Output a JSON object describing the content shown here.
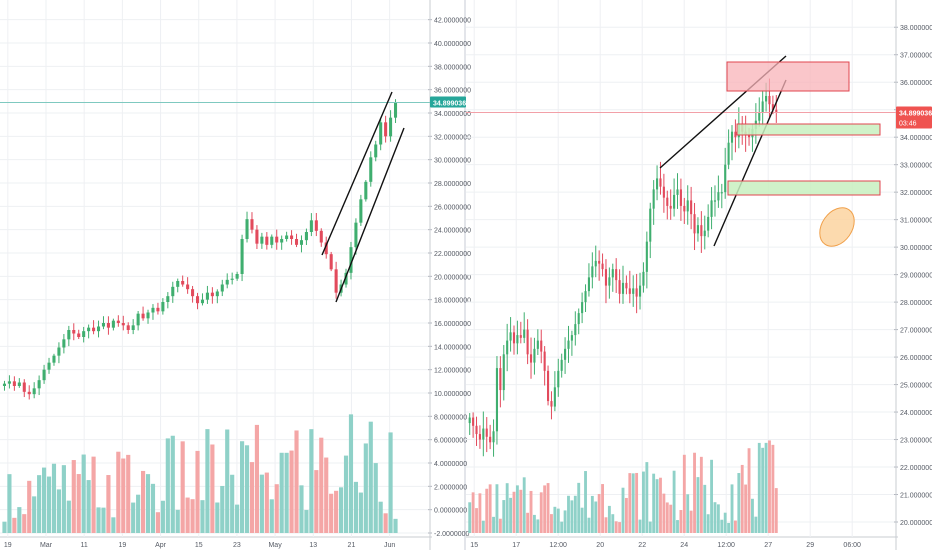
{
  "colors": {
    "up": "#26a69a",
    "down": "#ef5350",
    "up_candle": "#3fae6f",
    "down_candle": "#e24a5c",
    "vol_up": "#8fd1c8",
    "vol_down": "#f4a6a6",
    "grid": "#eef0f3",
    "axis_text": "#555a64",
    "price_line_left": "#7fc9c0",
    "price_line_right": "#f2a0a8",
    "price_badge": "#ef5350",
    "zone_red_fill": "#f8b3b8",
    "zone_red_stroke": "#e0454f",
    "zone_green_fill": "#c8f0c0",
    "zone_green_stroke": "#e0454f",
    "ellipse_fill": "#fcd4a0",
    "ellipse_stroke": "#f0a04a",
    "trendline": "#111111"
  },
  "chart_data": [
    {
      "type": "candlestick",
      "name": "daily",
      "x_ticks": [
        "19",
        "Mar",
        "11",
        "19",
        "Apr",
        "15",
        "23",
        "May",
        "13",
        "21",
        "Jun"
      ],
      "y_ticks": [
        "42.0000000",
        "40.0000000",
        "38.0000000",
        "36.0000000",
        "34.0000000",
        "32.0000000",
        "30.0000000",
        "28.0000000",
        "26.0000000",
        "24.0000000",
        "22.0000000",
        "20.0000000",
        "18.0000000",
        "16.0000000",
        "14.0000000",
        "12.0000000",
        "10.0000000",
        "8.0000000",
        "6.0000000",
        "4.0000000",
        "2.0000000",
        "0.0000000",
        "-2.0000000"
      ],
      "ylim": [
        -2,
        43
      ],
      "last_price": "34.8990366",
      "closes": [
        10.8,
        11.0,
        10.6,
        10.9,
        10.1,
        9.9,
        10.4,
        11.1,
        12.0,
        12.6,
        13.2,
        13.9,
        14.6,
        15.4,
        15.1,
        14.8,
        15.3,
        15.6,
        15.3,
        15.7,
        16.0,
        15.6,
        16.2,
        16.0,
        15.8,
        15.4,
        15.8,
        16.8,
        16.4,
        16.9,
        17.3,
        17.0,
        17.8,
        18.3,
        19.1,
        19.6,
        19.3,
        18.9,
        18.3,
        17.7,
        18.0,
        18.6,
        18.3,
        18.7,
        19.3,
        19.7,
        19.8,
        20.2,
        23.2,
        24.9,
        24.0,
        22.8,
        23.4,
        22.7,
        23.4,
        22.9,
        23.2,
        23.5,
        23.2,
        22.7,
        23.1,
        23.8,
        24.8,
        23.9,
        22.9,
        21.9,
        20.6,
        18.6,
        19.3,
        20.3,
        22.5,
        24.6,
        26.6,
        28.1,
        30.2,
        31.3,
        33.2,
        32.0,
        33.6,
        34.9
      ]
    },
    {
      "type": "candlestick",
      "name": "hourly",
      "x_ticks": [
        "15",
        "17",
        "12:00",
        "20",
        "22",
        "24",
        "12:00",
        "27",
        "29",
        "06:00"
      ],
      "y_ticks": [
        "38.0000000",
        "37.0000000",
        "36.0000000",
        "35.0000000",
        "34.0000000",
        "33.0000000",
        "32.0000000",
        "31.0000000",
        "30.0000000",
        "29.0000000",
        "28.0000000",
        "27.0000000",
        "26.0000000",
        "25.0000000",
        "24.0000000",
        "23.0000000",
        "22.0000000",
        "21.0000000",
        "20.0000000"
      ],
      "ylim": [
        19.6,
        38.7
      ],
      "last_price": "34.8990366",
      "countdown": "03:46",
      "closes": [
        23.8,
        23.5,
        23.2,
        23.0,
        23.4,
        23.1,
        22.9,
        23.3,
        25.6,
        24.8,
        26.1,
        26.6,
        26.9,
        26.5,
        26.8,
        26.7,
        27.0,
        26.1,
        25.8,
        26.3,
        26.6,
        26.2,
        25.5,
        24.4,
        24.2,
        24.9,
        25.5,
        25.9,
        26.3,
        26.6,
        26.8,
        27.2,
        27.6,
        28.0,
        28.4,
        28.9,
        29.3,
        29.5,
        29.4,
        29.2,
        28.6,
        28.9,
        29.2,
        28.8,
        28.3,
        28.7,
        28.5,
        28.3,
        28.5,
        28.2,
        28.6,
        29.1,
        30.2,
        31.4,
        32.1,
        32.5,
        32.2,
        31.8,
        31.5,
        31.4,
        31.9,
        32.1,
        31.5,
        31.3,
        31.7,
        31.2,
        30.5,
        30.8,
        30.4,
        30.6,
        31.1,
        31.7,
        31.7,
        32.0,
        32.0,
        33.0,
        33.8,
        34.2,
        34.0,
        34.5,
        34.2,
        34.1,
        34.0,
        34.3,
        34.6,
        34.9,
        35.3,
        35.5,
        35.2,
        35.0,
        34.9
      ]
    }
  ]
}
